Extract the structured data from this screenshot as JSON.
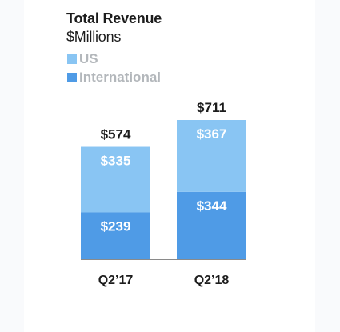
{
  "chart_data": {
    "type": "bar",
    "stacked": true,
    "title": "Total Revenue",
    "subtitle": "$Millions",
    "categories": [
      "Q2’17",
      "Q2’18"
    ],
    "series": [
      {
        "name": "International",
        "values": [
          239,
          344
        ],
        "labels": [
          "$239",
          "$344"
        ],
        "color": "#4f9be6"
      },
      {
        "name": "US",
        "values": [
          335,
          367
        ],
        "labels": [
          "$335",
          "$367"
        ],
        "color": "#89c5f3"
      }
    ],
    "totals": [
      574,
      711
    ],
    "total_labels": [
      "$574",
      "$711"
    ],
    "legend": [
      {
        "name": "US",
        "color": "#89c5f3"
      },
      {
        "name": "International",
        "color": "#4f9be6"
      }
    ],
    "legend_position": "top-left",
    "grid": false,
    "ylim": [
      0,
      711
    ]
  }
}
